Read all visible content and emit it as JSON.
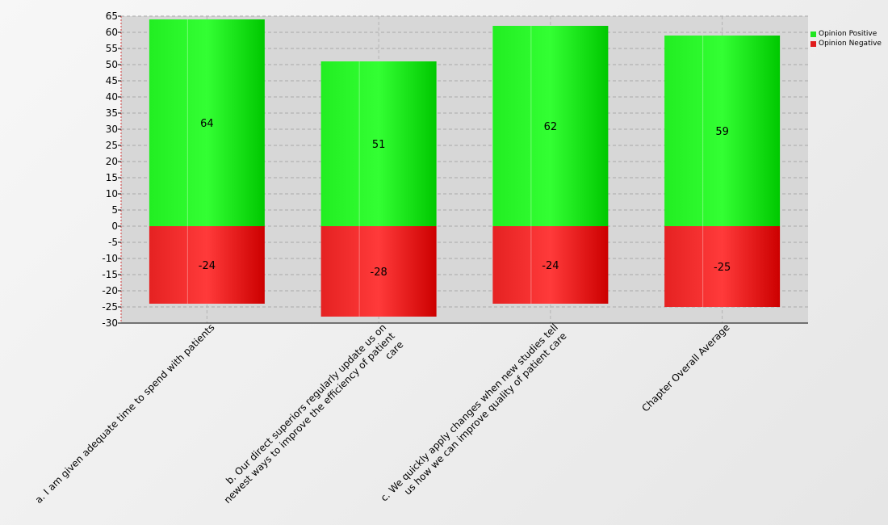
{
  "chart_data": {
    "type": "bar",
    "stacked": true,
    "title": "",
    "xlabel": "",
    "ylabel": "",
    "ylim": [
      -30,
      65
    ],
    "ytick_step": 5,
    "grid": true,
    "legend_placement": "top-right",
    "categories": [
      {
        "lines": [
          "a. I am given adequate time to spend with patients"
        ]
      },
      {
        "lines": [
          "b. Our direct superiors regularly update us on",
          "newest ways to improve the efficiency of patient",
          "care"
        ]
      },
      {
        "lines": [
          "c. We quickly apply changes when new studies tell",
          "us how we can improve quality of patient care"
        ]
      },
      {
        "lines": [
          "Chapter Overall Average"
        ]
      }
    ],
    "series": [
      {
        "name": "Opinion Positive",
        "color": "#22e622",
        "values": [
          64,
          51,
          62,
          59
        ]
      },
      {
        "name": "Opinion Negative",
        "color": "#e01c1c",
        "values": [
          -24,
          -28,
          -24,
          -25
        ]
      }
    ]
  }
}
